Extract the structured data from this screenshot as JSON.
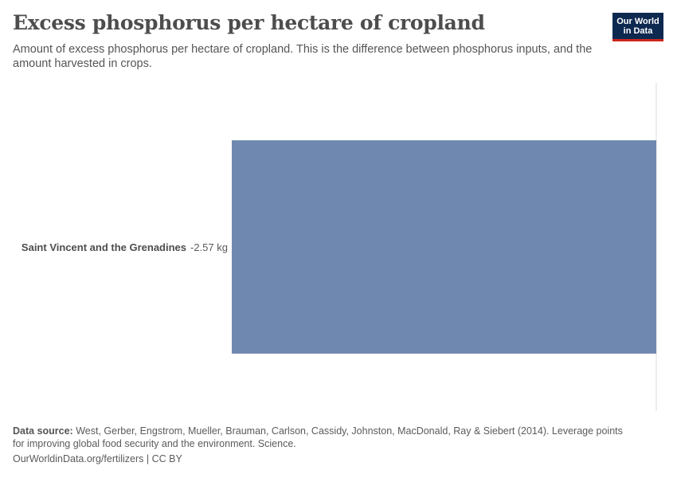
{
  "header": {
    "title": "Excess phosphorus per hectare of cropland",
    "subtitle": "Amount of excess phosphorus per hectare of cropland. This is the difference between phosphorus inputs, and the amount harvested in crops."
  },
  "logo": {
    "line1": "Our World",
    "line2": "in Data"
  },
  "chart_data": {
    "type": "bar",
    "orientation": "horizontal",
    "categories": [
      "Saint Vincent and the Grenadines"
    ],
    "values": [
      -2.57
    ],
    "value_labels": [
      "-2.57 kg"
    ],
    "unit": "kg",
    "xlim": [
      -2.57,
      0
    ],
    "bar_color": "#6f88b0",
    "grid": false
  },
  "footer": {
    "source_label": "Data source:",
    "source_text": "West, Gerber, Engstrom, Mueller, Brauman, Carlson, Cassidy, Johnston, MacDonald, Ray & Siebert (2014). Leverage points for improving global food security and the environment. Science.",
    "link_text": "OurWorldinData.org/fertilizers",
    "license": "| CC BY"
  },
  "colors": {
    "bar": "#6f88b0",
    "logo_bg": "#0e2950",
    "logo_accent": "#ce261e",
    "zero_line": "#dddddd"
  }
}
